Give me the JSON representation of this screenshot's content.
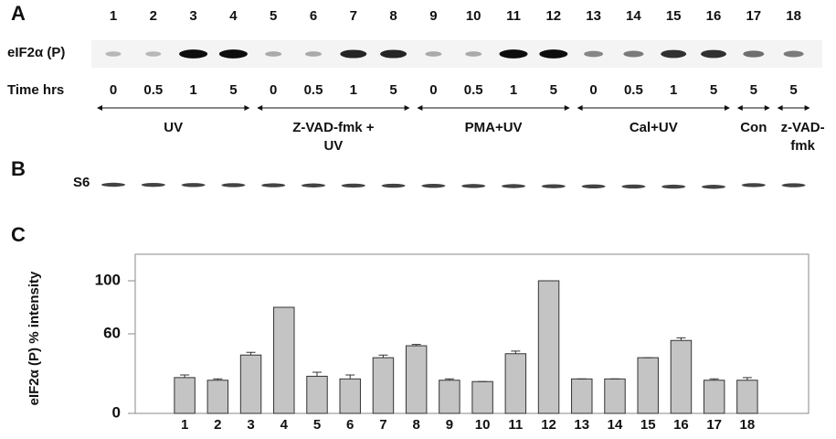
{
  "panel_a": {
    "letter": "A",
    "row_label": "eIF2α (P)",
    "lanes": [
      "1",
      "2",
      "3",
      "4",
      "5",
      "6",
      "7",
      "8",
      "9",
      "10",
      "11",
      "12",
      "13",
      "14",
      "15",
      "16",
      "17",
      "18"
    ],
    "time_label": "Time hrs",
    "times": [
      "0",
      "0.5",
      "1",
      "5",
      "0",
      "0.5",
      "1",
      "5",
      "0",
      "0.5",
      "1",
      "5",
      "0",
      "0.5",
      "1",
      "5",
      "5",
      "5"
    ],
    "groups": [
      {
        "lines": [
          "UV"
        ]
      },
      {
        "lines": [
          "Z-VAD-fmk +",
          "UV"
        ]
      },
      {
        "lines": [
          "PMA+UV"
        ]
      },
      {
        "lines": [
          "Cal+UV"
        ]
      },
      {
        "lines": [
          "Con"
        ]
      },
      {
        "lines": [
          "z-VAD-",
          "fmk"
        ]
      }
    ]
  },
  "panel_b": {
    "letter": "B",
    "row_label": "S6"
  },
  "panel_c": {
    "letter": "C"
  },
  "chart_data": {
    "type": "bar",
    "ylabel": "eIF2α (P) % intensity",
    "categories": [
      "1",
      "2",
      "3",
      "4",
      "5",
      "6",
      "7",
      "8",
      "9",
      "10",
      "11",
      "12",
      "13",
      "14",
      "15",
      "16",
      "17",
      "18"
    ],
    "values": [
      27,
      25,
      44,
      80,
      28,
      26,
      42,
      51,
      25,
      24,
      45,
      100,
      26,
      26,
      42,
      55,
      25,
      25
    ],
    "errors": [
      2,
      1,
      2,
      0,
      3,
      3,
      2,
      1,
      1,
      0,
      2,
      0,
      0,
      0,
      0,
      2,
      1,
      2
    ],
    "color": "#c4c4c4",
    "ylim": [
      0,
      120
    ],
    "yticks": [
      0,
      60,
      100
    ]
  }
}
